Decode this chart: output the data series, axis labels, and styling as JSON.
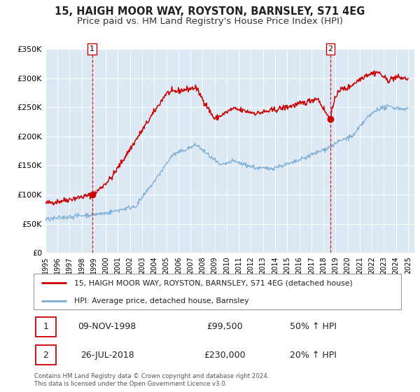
{
  "title": "15, HAIGH MOOR WAY, ROYSTON, BARNSLEY, S71 4EG",
  "subtitle": "Price paid vs. HM Land Registry's House Price Index (HPI)",
  "ylim": [
    0,
    350000
  ],
  "xlim_start": 1995.0,
  "xlim_end": 2025.5,
  "yticks": [
    0,
    50000,
    100000,
    150000,
    200000,
    250000,
    300000,
    350000
  ],
  "ytick_labels": [
    "£0",
    "£50K",
    "£100K",
    "£150K",
    "£200K",
    "£250K",
    "£300K",
    "£350K"
  ],
  "xticks": [
    1995,
    1996,
    1997,
    1998,
    1999,
    2000,
    2001,
    2002,
    2003,
    2004,
    2005,
    2006,
    2007,
    2008,
    2009,
    2010,
    2011,
    2012,
    2013,
    2014,
    2015,
    2016,
    2017,
    2018,
    2019,
    2020,
    2021,
    2022,
    2023,
    2024,
    2025
  ],
  "background_color": "#dce9f5",
  "fig_bg_color": "#ffffff",
  "red_line_color": "#cc0000",
  "blue_line_color": "#7aadd4",
  "marker1_x": 1998.87,
  "marker1_y": 99500,
  "marker2_x": 2018.57,
  "marker2_y": 230000,
  "vline1_x": 1998.87,
  "vline2_x": 2018.57,
  "legend_label_red": "15, HAIGH MOOR WAY, ROYSTON, BARNSLEY, S71 4EG (detached house)",
  "legend_label_blue": "HPI: Average price, detached house, Barnsley",
  "table_row1": [
    "1",
    "09-NOV-1998",
    "£99,500",
    "50% ↑ HPI"
  ],
  "table_row2": [
    "2",
    "26-JUL-2018",
    "£230,000",
    "20% ↑ HPI"
  ],
  "footer": "Contains HM Land Registry data © Crown copyright and database right 2024.\nThis data is licensed under the Open Government Licence v3.0.",
  "title_fontsize": 10.5,
  "subtitle_fontsize": 9.5
}
